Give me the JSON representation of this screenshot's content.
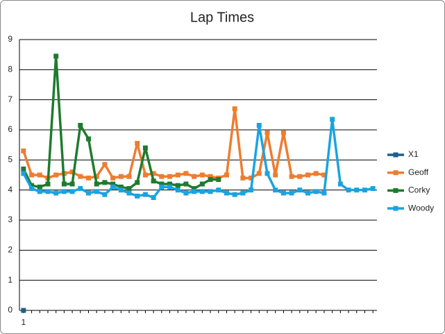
{
  "chart_data": {
    "type": "line",
    "title": "Lap Times",
    "categories": [
      "1",
      null,
      null,
      null,
      null,
      null,
      null,
      null,
      null,
      null,
      null,
      null,
      null,
      null,
      null,
      null,
      null,
      null,
      null,
      null,
      null,
      null,
      null,
      null,
      null,
      null,
      null,
      null,
      null,
      null,
      null,
      null,
      null,
      null,
      null,
      null,
      null,
      null,
      null,
      null,
      null,
      null,
      null,
      null
    ],
    "ylim": [
      0,
      9
    ],
    "yticks": [
      0,
      1,
      2,
      3,
      4,
      5,
      6,
      7,
      8,
      9
    ],
    "grid": true,
    "legend": "right",
    "series": [
      {
        "name": "X1",
        "color": "#1f5f8b",
        "values": [
          0,
          null,
          null,
          null,
          null,
          null,
          null,
          null,
          null,
          null,
          null,
          null,
          null,
          null,
          null,
          null,
          null,
          null,
          null,
          null,
          null,
          null,
          null,
          null,
          null,
          null,
          null,
          null,
          null,
          null,
          null,
          null,
          null,
          null,
          null,
          null,
          null,
          null,
          null,
          null,
          null,
          null,
          null,
          null
        ]
      },
      {
        "name": "Geoff",
        "color": "#ed7d31",
        "values": [
          5.3,
          4.5,
          4.5,
          4.4,
          4.5,
          4.55,
          4.6,
          4.45,
          4.4,
          4.45,
          4.85,
          4.4,
          4.45,
          4.45,
          5.55,
          4.5,
          4.55,
          4.45,
          4.45,
          4.5,
          4.55,
          4.45,
          4.5,
          4.45,
          4.4,
          4.5,
          6.7,
          4.4,
          4.4,
          4.55,
          5.9,
          4.5,
          5.9,
          4.45,
          4.45,
          4.5,
          4.55,
          4.5,
          null,
          null,
          null,
          null,
          null,
          null
        ]
      },
      {
        "name": "Corky",
        "color": "#1e7b2e",
        "values": [
          4.7,
          4.15,
          4.1,
          4.2,
          8.45,
          4.2,
          4.2,
          6.15,
          5.7,
          4.2,
          4.25,
          4.2,
          4.1,
          4.05,
          4.25,
          5.4,
          4.3,
          4.2,
          4.2,
          4.15,
          4.2,
          4.05,
          4.2,
          4.35,
          4.35,
          null,
          null,
          null,
          null,
          null,
          null,
          null,
          null,
          null,
          null,
          null,
          null,
          null,
          null,
          null,
          null,
          null,
          null,
          null
        ]
      },
      {
        "name": "Woody",
        "color": "#1aa3e0",
        "values": [
          4.55,
          4.05,
          3.95,
          3.95,
          3.9,
          3.95,
          3.95,
          4.05,
          3.9,
          3.95,
          3.85,
          4.1,
          4.0,
          3.9,
          3.8,
          3.85,
          3.75,
          4.1,
          4.1,
          4.0,
          3.9,
          3.95,
          3.95,
          3.95,
          4.0,
          3.9,
          3.85,
          3.9,
          4.0,
          6.15,
          4.55,
          4.0,
          3.9,
          3.9,
          4.0,
          3.9,
          3.95,
          3.9,
          6.35,
          4.2,
          4.0,
          4.0,
          4.0,
          4.05
        ]
      }
    ]
  }
}
